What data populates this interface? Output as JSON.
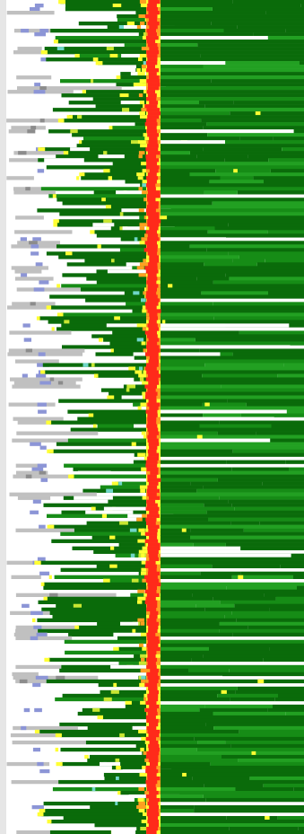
{
  "colors": {
    "background": "#ffffff",
    "frame": "#e6e6e6",
    "gray": "#c0c0c0",
    "dark_gray": "#8c8c8c",
    "blue": "#8c95d6",
    "dark_green": "#0a6b0a",
    "mid_green": "#168c16",
    "light_green": "#22a022",
    "yellow": "#ffff33",
    "yellow_green": "#c8e632",
    "orange": "#ffa020",
    "red": "#ff2a1a",
    "teal": "#6fd6c8"
  },
  "pattern": {
    "rows": 232,
    "seed": 7
  }
}
